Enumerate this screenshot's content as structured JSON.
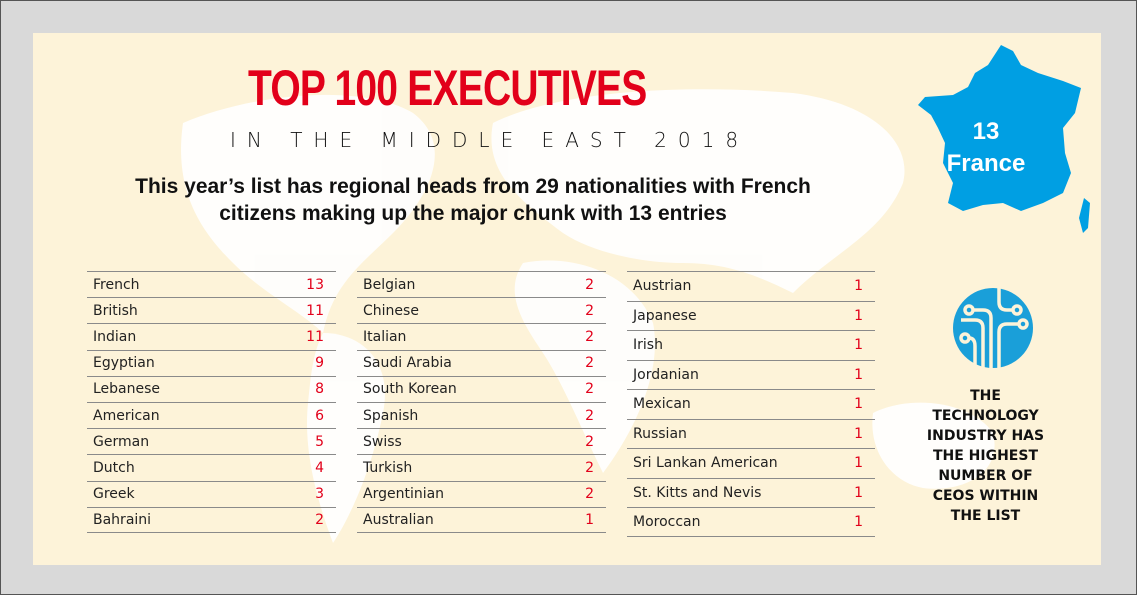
{
  "header": {
    "title": "TOP 100 EXECUTIVES",
    "subtitle": "IN THE MIDDLE EAST 2018",
    "intro_line1": "This year’s list has regional heads from 29 nationalities with French",
    "intro_line2": "citizens making up the major chunk with 13 entries"
  },
  "highlight": {
    "count": "13",
    "country": "France",
    "color": "#009fe3"
  },
  "columns": [
    [
      {
        "nationality": "French",
        "count": "13"
      },
      {
        "nationality": "British",
        "count": "11"
      },
      {
        "nationality": "Indian",
        "count": "11"
      },
      {
        "nationality": "Egyptian",
        "count": "9"
      },
      {
        "nationality": "Lebanese",
        "count": "8"
      },
      {
        "nationality": "American",
        "count": "6"
      },
      {
        "nationality": "German",
        "count": "5"
      },
      {
        "nationality": "Dutch",
        "count": "4"
      },
      {
        "nationality": "Greek",
        "count": "3"
      },
      {
        "nationality": "Bahraini",
        "count": "2"
      }
    ],
    [
      {
        "nationality": "Belgian",
        "count": "2"
      },
      {
        "nationality": "Chinese",
        "count": "2"
      },
      {
        "nationality": "Italian",
        "count": "2"
      },
      {
        "nationality": "Saudi Arabia",
        "count": "2"
      },
      {
        "nationality": "South Korean",
        "count": "2"
      },
      {
        "nationality": "Spanish",
        "count": "2"
      },
      {
        "nationality": "Swiss",
        "count": "2"
      },
      {
        "nationality": "Turkish",
        "count": "2"
      },
      {
        "nationality": "Argentinian",
        "count": "2"
      },
      {
        "nationality": "Australian",
        "count": "1"
      }
    ],
    [
      {
        "nationality": "Austrian",
        "count": "1"
      },
      {
        "nationality": "Japanese",
        "count": "1"
      },
      {
        "nationality": "Irish",
        "count": "1"
      },
      {
        "nationality": "Jordanian",
        "count": "1"
      },
      {
        "nationality": "Mexican",
        "count": "1"
      },
      {
        "nationality": "Russian",
        "count": "1"
      },
      {
        "nationality": "Sri Lankan American",
        "count": "1"
      },
      {
        "nationality": "St. Kitts and Nevis",
        "count": "1"
      },
      {
        "nationality": "Moroccan",
        "count": "1"
      }
    ]
  ],
  "tech_note": {
    "lines": [
      "THE",
      "TECHNOLOGY",
      "INDUSTRY HAS",
      "THE HIGHEST",
      "NUMBER OF",
      "CEOS WITHIN",
      "THE LIST"
    ],
    "icon": "circuit-icon"
  }
}
